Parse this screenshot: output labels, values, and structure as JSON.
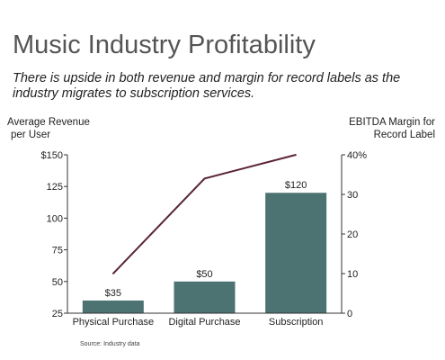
{
  "header": {
    "title": "Music Industry Profitability",
    "subtitle": "There is upside in both revenue and margin for record labels as the industry migrates to subscription services."
  },
  "axis_titles": {
    "left_line1": "Average Revenue",
    "left_line2": "per User",
    "right_line1": "EBITDA Margin for",
    "right_line2": "Record Label"
  },
  "footer": {
    "source": "Source: Industry data"
  },
  "colors": {
    "bar": "#4c7272",
    "line": "#5a2436",
    "axis": "#333333"
  },
  "chart_data": {
    "type": "bar",
    "title": "Music Industry Profitability",
    "categories": [
      "Physical Purchase",
      "Digital Purchase",
      "Subscription"
    ],
    "series": [
      {
        "name": "Average Revenue per User",
        "kind": "bar",
        "axis": "left",
        "values": [
          35,
          50,
          120
        ],
        "labels": [
          "$35",
          "$50",
          "$120"
        ]
      },
      {
        "name": "EBITDA Margin for Record Label",
        "kind": "line",
        "axis": "right",
        "values": [
          10,
          34,
          40
        ]
      }
    ],
    "y_left": {
      "min": 25,
      "max": 150,
      "ticks": [
        150,
        125,
        100,
        75,
        50,
        25
      ],
      "tick_labels": [
        "$150",
        "125",
        "100",
        "75",
        "50",
        "25"
      ]
    },
    "y_right": {
      "min": 0,
      "max": 40,
      "ticks": [
        40,
        30,
        20,
        10,
        0
      ],
      "tick_labels": [
        "40%",
        "30",
        "20",
        "10",
        "0"
      ]
    },
    "grid": false
  }
}
